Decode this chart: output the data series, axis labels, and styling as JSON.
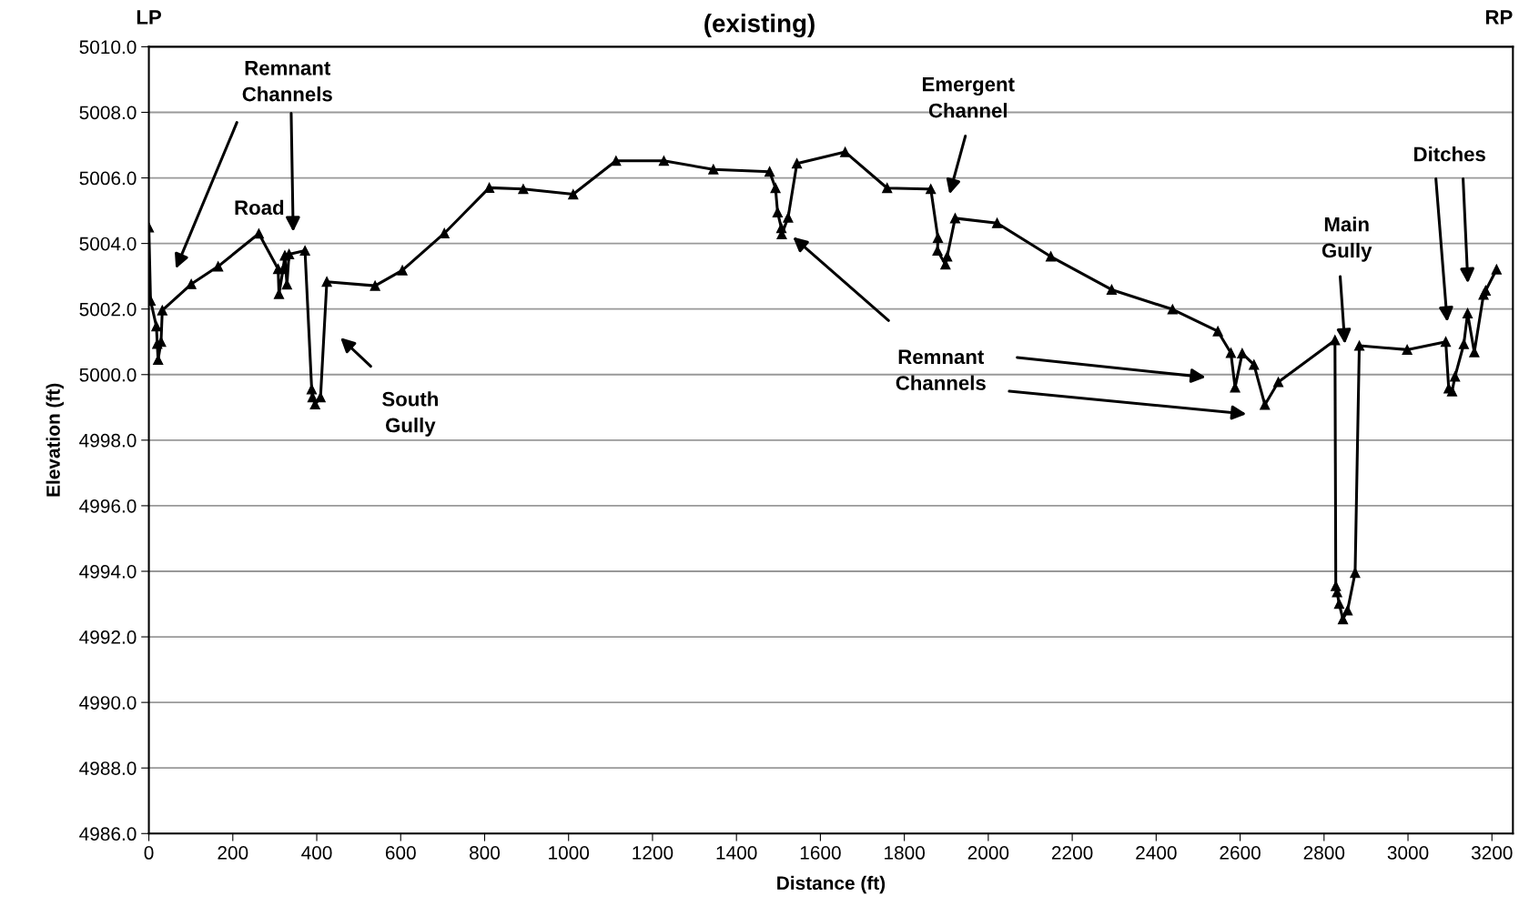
{
  "chart_data": {
    "type": "line",
    "title": "(existing)",
    "xlabel": "Distance (ft)",
    "ylabel": "Elevation (ft)",
    "xlim": [
      0,
      3250
    ],
    "xticks": [
      0,
      200,
      400,
      600,
      800,
      1000,
      1200,
      1400,
      1600,
      1800,
      2000,
      2200,
      2400,
      2600,
      2800,
      3000,
      3200
    ],
    "ylim": [
      4986,
      5010
    ],
    "yticks": [
      {
        "value": 4986,
        "label": "4986.0"
      },
      {
        "value": 4988,
        "label": "4988.0"
      },
      {
        "value": 4990,
        "label": "4990.0"
      },
      {
        "value": 4992,
        "label": "4992.0"
      },
      {
        "value": 4994,
        "label": "4994.0"
      },
      {
        "value": 4996,
        "label": "4996.0"
      },
      {
        "value": 4998,
        "label": "4998.0"
      },
      {
        "value": 5000,
        "label": "5000.0"
      },
      {
        "value": 5002,
        "label": "5002.0"
      },
      {
        "value": 5004,
        "label": "5004.0"
      },
      {
        "value": 5006,
        "label": "5006.0"
      },
      {
        "value": 5008,
        "label": "5008.0"
      },
      {
        "value": 5010,
        "label": "5010.0"
      }
    ],
    "grid": "y",
    "marker": "triangle",
    "line_style": "solid",
    "x": [
      0,
      4,
      18,
      20,
      22,
      29,
      32,
      101,
      165,
      262,
      308,
      310,
      320,
      324,
      329,
      334,
      372,
      388,
      390,
      396,
      409,
      424,
      539,
      604,
      704,
      811,
      892,
      1011,
      1113,
      1227,
      1345,
      1479,
      1493,
      1498,
      1507,
      1508,
      1523,
      1544,
      1659,
      1759,
      1863,
      1880,
      1879,
      1898,
      1902,
      1921,
      2021,
      2149,
      2294,
      2439,
      2547,
      2578,
      2588,
      2605,
      2633,
      2659,
      2691,
      2826,
      2828,
      2831,
      2836,
      2845,
      2856,
      2874,
      2884,
      2998,
      3090,
      3097,
      3105,
      3112,
      3133,
      3142,
      3158,
      3180,
      3185,
      3211
    ],
    "series": [
      {
        "color": "#000000",
        "values": [
          5004.49,
          5002.26,
          5001.47,
          5000.94,
          5000.45,
          5001.0,
          5001.96,
          5002.76,
          5003.3,
          5004.3,
          5003.22,
          5002.46,
          5003.22,
          5003.63,
          5002.75,
          5003.67,
          5003.78,
          4999.55,
          4999.31,
          4999.09,
          4999.31,
          5002.83,
          5002.71,
          5003.18,
          5004.31,
          5005.7,
          5005.66,
          5005.5,
          5006.52,
          5006.52,
          5006.26,
          5006.19,
          5005.69,
          5004.95,
          5004.47,
          5004.28,
          5004.79,
          5006.44,
          5006.79,
          5005.69,
          5005.66,
          5004.17,
          5003.78,
          5003.36,
          5003.6,
          5004.77,
          5004.62,
          5003.6,
          5002.59,
          5001.99,
          5001.32,
          5000.66,
          4999.61,
          5000.65,
          5000.3,
          4999.08,
          4999.77,
          5001.05,
          4993.55,
          4993.36,
          4993.01,
          4992.54,
          4992.81,
          4993.95,
          5000.88,
          5000.76,
          5001.0,
          4999.58,
          4999.49,
          4999.94,
          5000.93,
          5001.87,
          5000.68,
          5002.44,
          5002.56,
          5003.21
        ]
      }
    ],
    "annotations": [
      "LP",
      "RP",
      "Remnant\nChannels",
      "Road",
      "South\nGully",
      "Emergent\nChannel",
      "Remnant\nChannels",
      "Main\nGully",
      "Ditches"
    ]
  }
}
